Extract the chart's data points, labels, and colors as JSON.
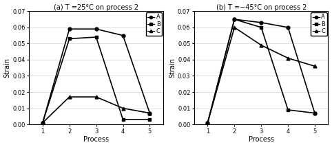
{
  "panel_a": {
    "title": "(a) T =25°C on process 2",
    "series": {
      "A": [
        0.001,
        0.059,
        0.059,
        0.055,
        0.007
      ],
      "B": [
        0.001,
        0.053,
        0.054,
        0.003,
        0.003
      ],
      "C": [
        0.001,
        0.017,
        0.017,
        0.01,
        0.007
      ]
    }
  },
  "panel_b": {
    "title": "(b) T =−45°C on process 2",
    "series": {
      "A": [
        0.001,
        0.065,
        0.063,
        0.06,
        0.007
      ],
      "B": [
        0.001,
        0.065,
        0.06,
        0.009,
        0.007
      ],
      "C": [
        0.001,
        0.06,
        0.049,
        0.041,
        0.036
      ]
    }
  },
  "x": [
    1,
    2,
    3,
    4,
    5
  ],
  "xlabel": "Process",
  "ylabel": "Strain",
  "ylim": [
    0,
    0.07
  ],
  "yticks": [
    0,
    0.01,
    0.02,
    0.03,
    0.04,
    0.05,
    0.06,
    0.07
  ],
  "markers": {
    "A": "o",
    "B": "s",
    "C": "^"
  },
  "marker_size": 3.5,
  "line_width": 1.2,
  "title_fontsize": 7,
  "label_fontsize": 7,
  "tick_fontsize": 6,
  "legend_fontsize": 6
}
